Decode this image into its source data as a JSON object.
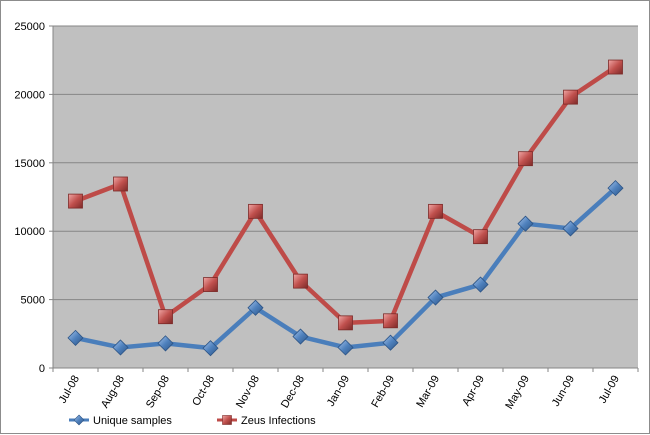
{
  "chart_data": {
    "type": "line",
    "title": "",
    "xlabel": "",
    "ylabel": "",
    "categories": [
      "Jul-08",
      "Aug-08",
      "Sep-08",
      "Oct-08",
      "Nov-08",
      "Dec-08",
      "Jan-09",
      "Feb-09",
      "Mar-09",
      "Apr-09",
      "May-09",
      "Jun-09",
      "Jul-09"
    ],
    "ylim": [
      0,
      25000
    ],
    "yticks": [
      0,
      5000,
      10000,
      15000,
      20000,
      25000
    ],
    "grid": "horizontal",
    "legend_position": "bottom-left",
    "plot_background": "#c0c0c0",
    "series": [
      {
        "name": "Unique samples",
        "color": "#4a7ebb",
        "marker": "diamond",
        "values": [
          2200,
          1500,
          1800,
          1450,
          4400,
          2300,
          1500,
          1850,
          5150,
          6100,
          10550,
          10200,
          13150
        ]
      },
      {
        "name": "Zeus Infections",
        "color": "#be4b48",
        "marker": "square",
        "values": [
          12200,
          13450,
          3750,
          6100,
          11450,
          6350,
          3300,
          3450,
          11450,
          9600,
          15300,
          19800,
          22000
        ]
      }
    ]
  }
}
